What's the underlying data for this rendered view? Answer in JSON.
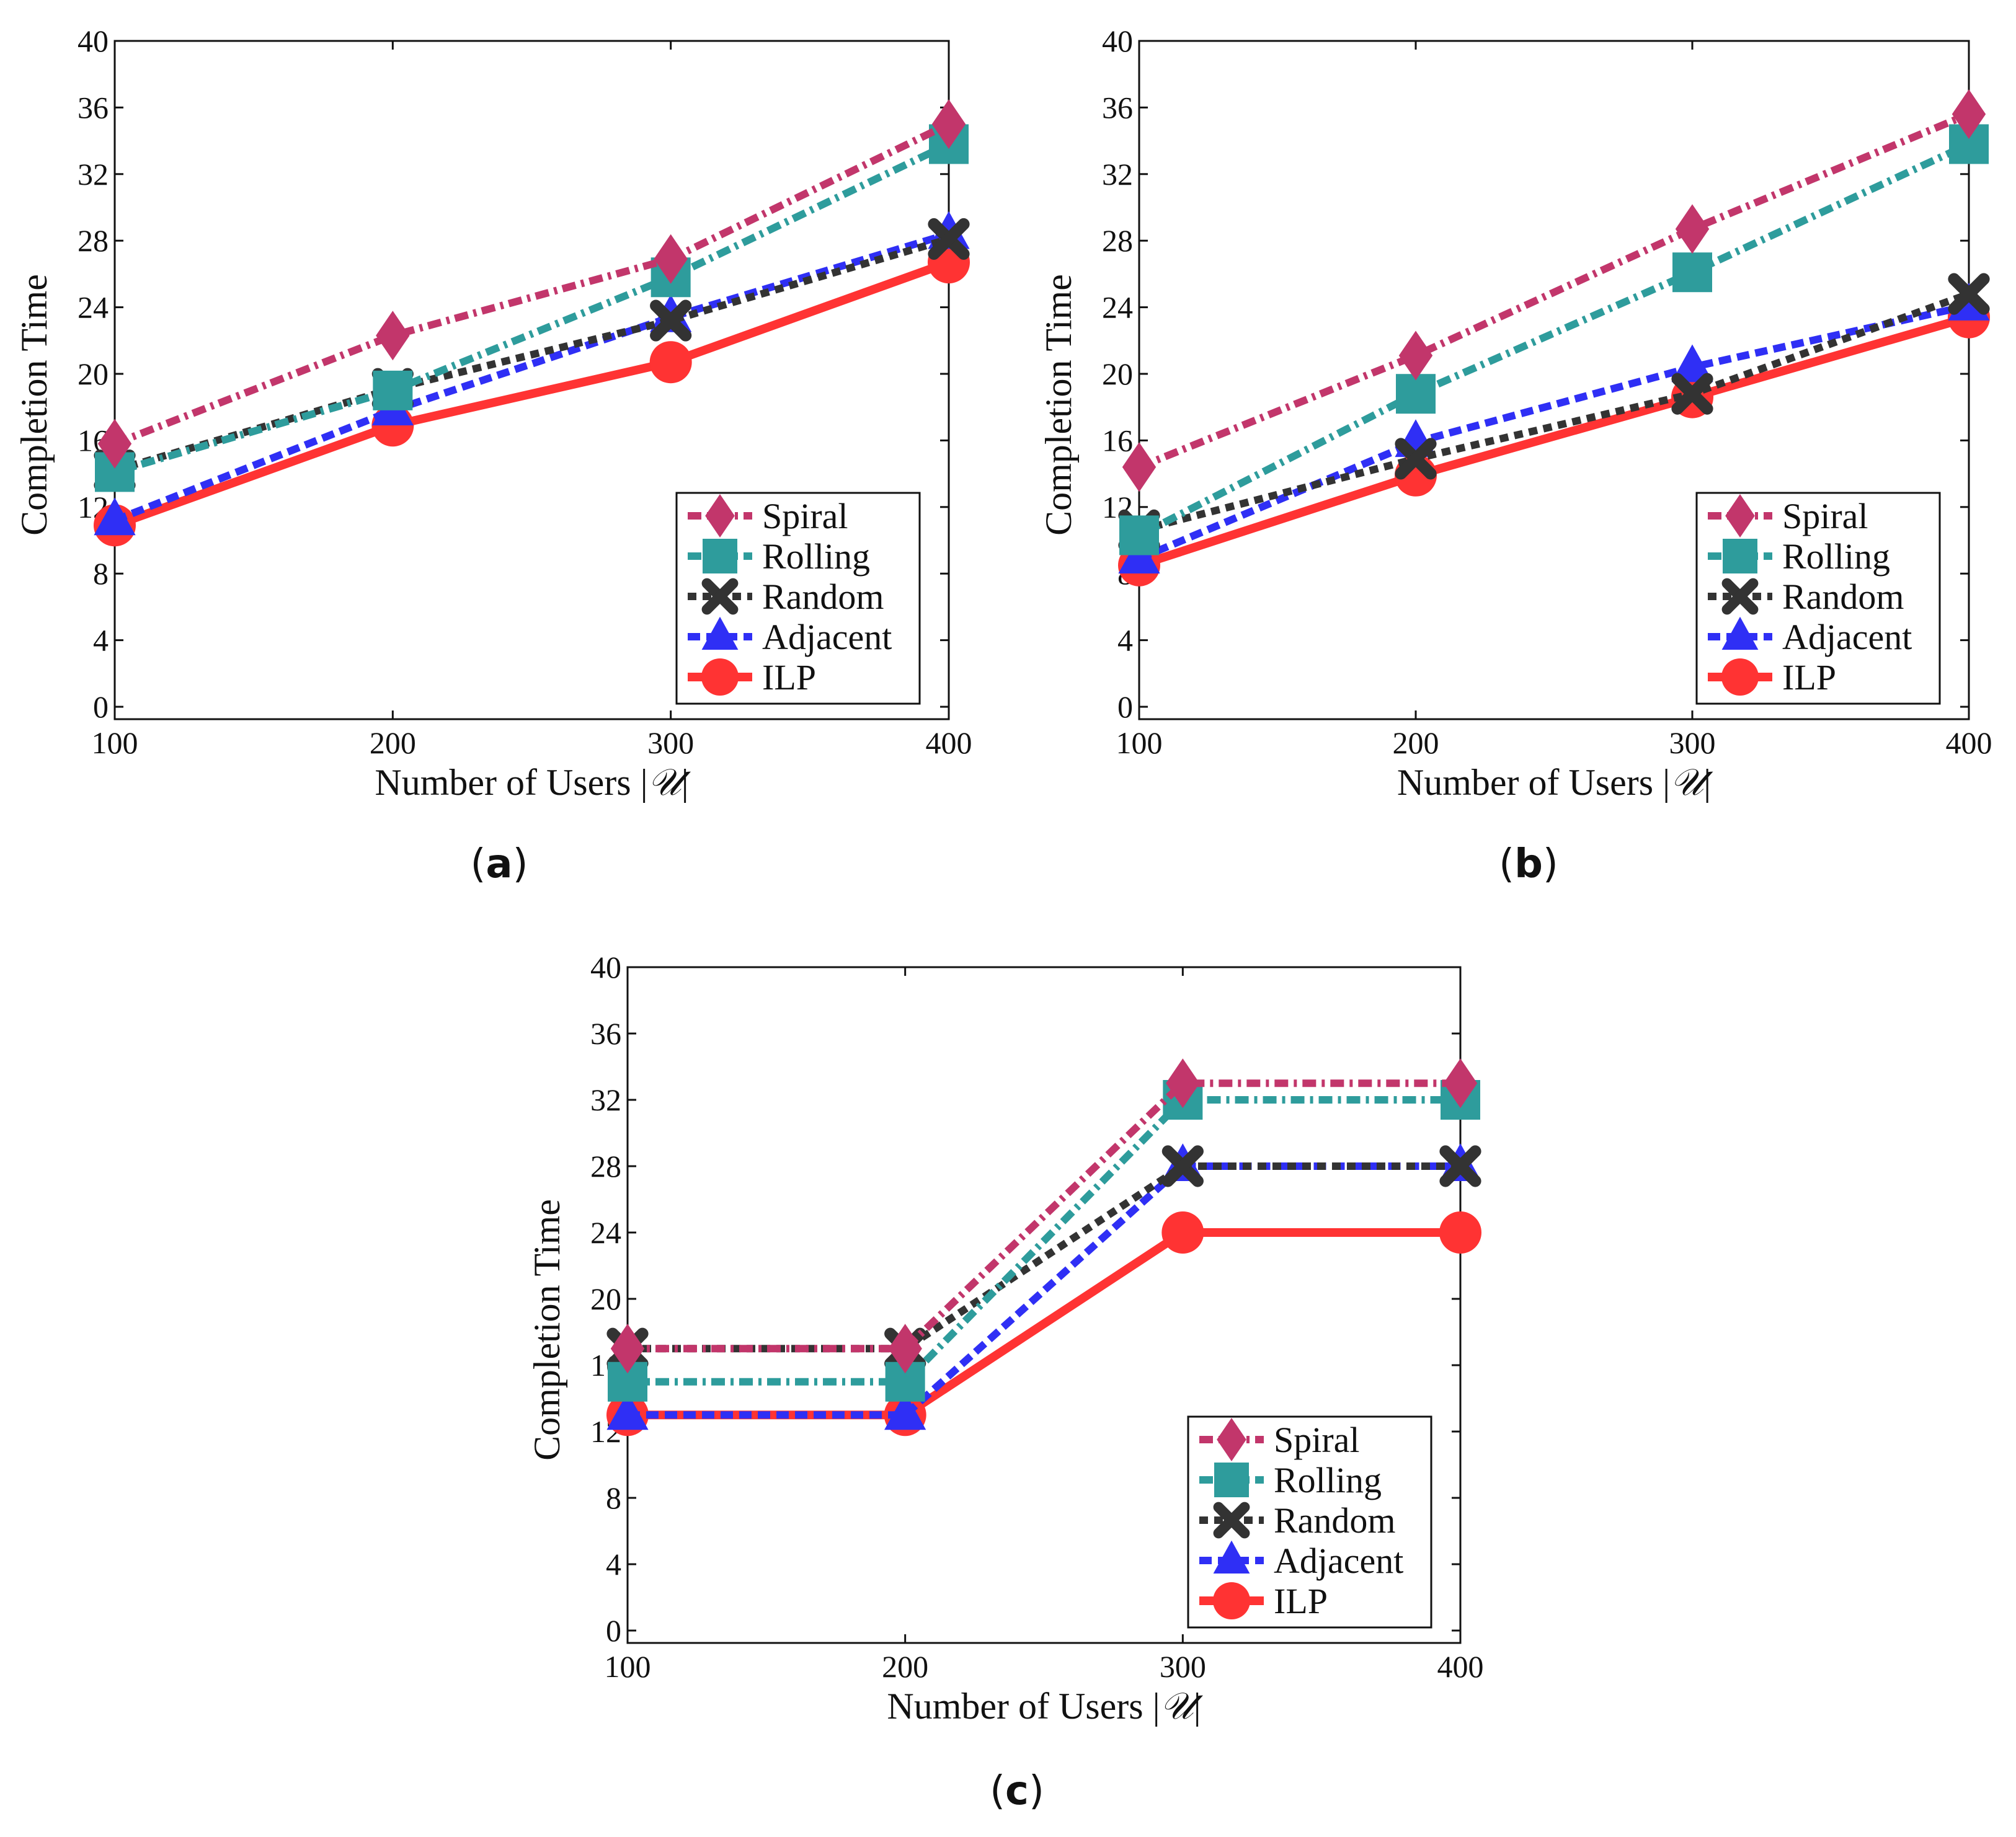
{
  "colors": {
    "Spiral": "#c2366b",
    "Rolling": "#2e9c9c",
    "Random": "#333333",
    "Adjacent": "#2f2ff5",
    "ILP": "#ff3333"
  },
  "chart_data": [
    {
      "type": "line",
      "panel": "a",
      "caption": "a",
      "xlabel_text": "Number of Users |",
      "xlabel_symbol": "𝒰",
      "xlabel_close": "|",
      "ylabel": "Completion Time",
      "categories": [
        "100",
        "200",
        "300",
        "400"
      ],
      "yticks": [
        "0",
        "4",
        "8",
        "12",
        "16",
        "20",
        "24",
        "28",
        "32",
        "36",
        "40"
      ],
      "ylim": [
        0,
        40
      ],
      "legend_position": "lower-right",
      "series": [
        {
          "name": "Spiral",
          "marker": "diamond",
          "values": [
            15.8,
            22.3,
            26.9,
            35.0
          ]
        },
        {
          "name": "Rolling",
          "marker": "square",
          "values": [
            14.1,
            19.0,
            25.8,
            33.8
          ]
        },
        {
          "name": "Random",
          "marker": "x",
          "values": [
            14.2,
            19.1,
            23.2,
            28.1
          ]
        },
        {
          "name": "Adjacent",
          "marker": "triangle",
          "values": [
            11.2,
            17.8,
            23.4,
            28.4
          ]
        },
        {
          "name": "ILP",
          "marker": "circle",
          "values": [
            10.9,
            16.9,
            20.7,
            26.7
          ]
        }
      ]
    },
    {
      "type": "line",
      "panel": "b",
      "caption": "b",
      "xlabel_text": "Number of Users |",
      "xlabel_symbol": "𝒰",
      "xlabel_close": "|",
      "ylabel": "Completion Time",
      "categories": [
        "100",
        "200",
        "300",
        "400"
      ],
      "yticks": [
        "0",
        "4",
        "8",
        "12",
        "16",
        "20",
        "24",
        "28",
        "32",
        "36",
        "40"
      ],
      "ylim": [
        0,
        40
      ],
      "legend_position": "lower-right",
      "series": [
        {
          "name": "Spiral",
          "marker": "diamond",
          "values": [
            14.4,
            21.1,
            28.7,
            35.6
          ]
        },
        {
          "name": "Rolling",
          "marker": "square",
          "values": [
            10.3,
            18.8,
            26.1,
            33.8
          ]
        },
        {
          "name": "Random",
          "marker": "x",
          "values": [
            10.6,
            14.9,
            18.8,
            24.8
          ]
        },
        {
          "name": "Adjacent",
          "marker": "triangle",
          "values": [
            8.9,
            15.9,
            20.4,
            24.1
          ]
        },
        {
          "name": "ILP",
          "marker": "circle",
          "values": [
            8.5,
            13.9,
            18.6,
            23.4
          ]
        }
      ]
    },
    {
      "type": "line",
      "panel": "c",
      "caption": "c",
      "xlabel_text": "Number of Users |",
      "xlabel_symbol": "𝒰",
      "xlabel_close": "|",
      "ylabel": "Completion Time",
      "categories": [
        "100",
        "200",
        "300",
        "400"
      ],
      "yticks": [
        "0",
        "4",
        "8",
        "12",
        "16",
        "20",
        "24",
        "28",
        "32",
        "36",
        "40"
      ],
      "ylim": [
        0,
        40
      ],
      "legend_position": "lower-right",
      "series": [
        {
          "name": "Spiral",
          "marker": "diamond",
          "values": [
            17.0,
            17.0,
            33.0,
            33.0
          ]
        },
        {
          "name": "Rolling",
          "marker": "square",
          "values": [
            15.0,
            15.0,
            32.0,
            32.0
          ]
        },
        {
          "name": "Random",
          "marker": "x",
          "values": [
            17.0,
            17.0,
            28.0,
            28.0
          ]
        },
        {
          "name": "Adjacent",
          "marker": "triangle",
          "values": [
            13.0,
            13.0,
            28.0,
            28.0
          ]
        },
        {
          "name": "ILP",
          "marker": "circle",
          "values": [
            13.0,
            13.0,
            24.0,
            24.0
          ]
        }
      ]
    }
  ]
}
